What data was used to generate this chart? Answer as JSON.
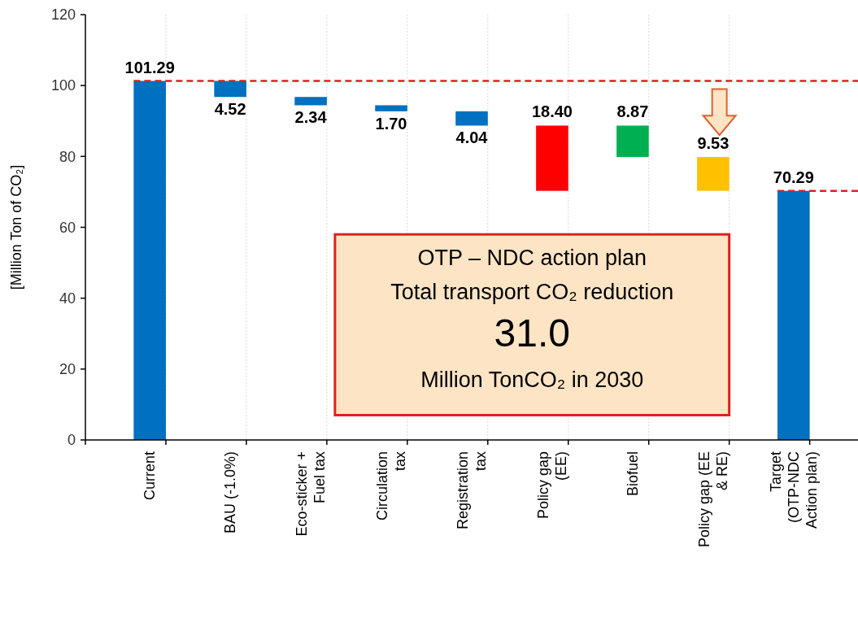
{
  "chart_data": {
    "type": "bar",
    "ylabel": "[Million Ton of CO₂]",
    "categories": [
      "Current",
      "BAU (-1.0%)",
      "Eco-sticker + Fuel tax",
      "Circulation tax",
      "Registration tax",
      "Policy gap (EE)",
      "Biofuel",
      "Policy gap (EE & RE)",
      "Target (OTP-NDC Action plan)"
    ],
    "values": [
      101.29,
      4.52,
      2.34,
      1.7,
      4.04,
      18.4,
      8.87,
      9.53,
      70.29
    ],
    "base": [
      0,
      96.77,
      94.43,
      92.73,
      88.69,
      70.29,
      79.82,
      70.29,
      0
    ],
    "colors": [
      "#0070c0",
      "#0070c0",
      "#0070c0",
      "#0070c0",
      "#0070c0",
      "#ff0000",
      "#00b050",
      "#ffc000",
      "#0070c0"
    ],
    "value_labels": [
      "101.29",
      "4.52",
      "2.34",
      "1.70",
      "4.04",
      "18.40",
      "8.87",
      "9.53",
      "70.29"
    ],
    "ylim": [
      0,
      120
    ],
    "yticks": [
      0,
      20,
      40,
      60,
      80,
      100,
      120
    ],
    "grid": "x",
    "ref_lines": [
      {
        "axis": "y",
        "value": 101.29,
        "color": "#e02020",
        "line_style": "dashed"
      },
      {
        "axis": "y",
        "value": 70.29,
        "color": "#e02020",
        "line_style": "dashed"
      }
    ],
    "annotations": [
      "OTP – NDC action plan",
      "Total transport CO₂ reduction",
      "31.0",
      "Million TonCO₂ in 2030"
    ]
  }
}
